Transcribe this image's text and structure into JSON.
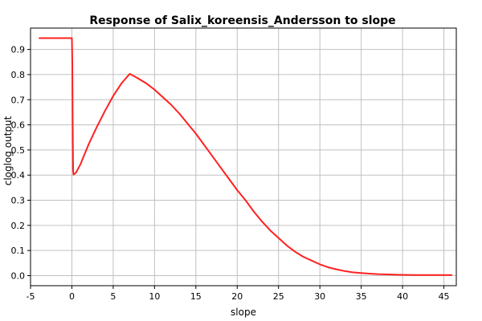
{
  "chart_data": {
    "type": "line",
    "title": "Response of Salix_koreensis_Andersson to slope",
    "xlabel": "slope",
    "ylabel": "cloglog output",
    "xlim": [
      -5,
      46.5
    ],
    "ylim": [
      -0.04,
      0.985
    ],
    "x_ticks": [
      -5,
      0,
      5,
      10,
      15,
      20,
      25,
      30,
      35,
      40,
      45
    ],
    "y_ticks": [
      0.0,
      0.1,
      0.2,
      0.3,
      0.4,
      0.5,
      0.6,
      0.7,
      0.8,
      0.9
    ],
    "grid": true,
    "series": [
      {
        "color": "#ff2020",
        "x": [
          -4,
          -2,
          0,
          0.05,
          0.1,
          0.15,
          0.2,
          0.5,
          1,
          2,
          3,
          4,
          5,
          6,
          7,
          8,
          9,
          10,
          11,
          12,
          13,
          14,
          15,
          16,
          17,
          18,
          19,
          20,
          21,
          22,
          23,
          24,
          25,
          26,
          27,
          28,
          29,
          30,
          31,
          32,
          33,
          34,
          35,
          36,
          37,
          38,
          39,
          40,
          42,
          44,
          46
        ],
        "y": [
          0.945,
          0.945,
          0.945,
          0.85,
          0.6,
          0.42,
          0.402,
          0.41,
          0.44,
          0.52,
          0.59,
          0.655,
          0.715,
          0.765,
          0.803,
          0.785,
          0.765,
          0.74,
          0.71,
          0.68,
          0.645,
          0.605,
          0.565,
          0.52,
          0.475,
          0.43,
          0.385,
          0.34,
          0.3,
          0.255,
          0.215,
          0.18,
          0.15,
          0.12,
          0.095,
          0.075,
          0.06,
          0.045,
          0.033,
          0.025,
          0.018,
          0.013,
          0.01,
          0.008,
          0.006,
          0.005,
          0.004,
          0.003,
          0.002,
          0.002,
          0.002
        ]
      }
    ]
  }
}
